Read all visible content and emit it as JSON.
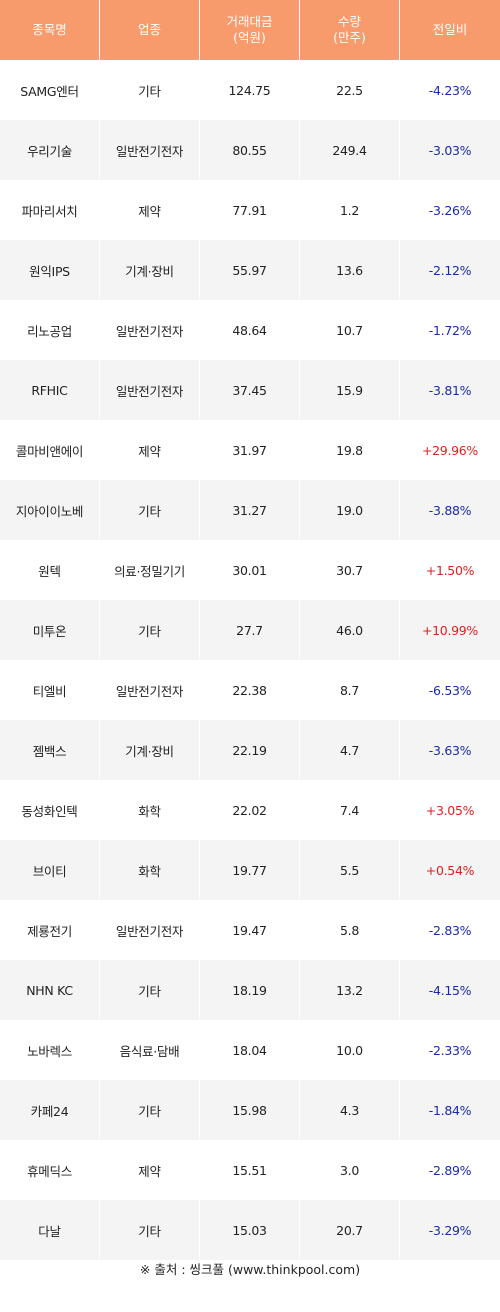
{
  "header": {
    "name": "종목명",
    "sector": "업종",
    "amount_line1": "거래대금",
    "amount_line2": "(억원)",
    "volume_line1": "수량",
    "volume_line2": "(만주)",
    "change": "전일비"
  },
  "colors": {
    "header_bg": "#f79a6c",
    "down": "#1a2ab0",
    "up": "#e02020"
  },
  "rows": [
    {
      "name": "SAMG엔터",
      "sector": "기타",
      "amount": "124.75",
      "volume": "22.5",
      "change": "-4.23%",
      "dir": "down"
    },
    {
      "name": "우리기술",
      "sector": "일반전기전자",
      "amount": "80.55",
      "volume": "249.4",
      "change": "-3.03%",
      "dir": "down"
    },
    {
      "name": "파마리서치",
      "sector": "제약",
      "amount": "77.91",
      "volume": "1.2",
      "change": "-3.26%",
      "dir": "down"
    },
    {
      "name": "원익IPS",
      "sector": "기계·장비",
      "amount": "55.97",
      "volume": "13.6",
      "change": "-2.12%",
      "dir": "down"
    },
    {
      "name": "리노공업",
      "sector": "일반전기전자",
      "amount": "48.64",
      "volume": "10.7",
      "change": "-1.72%",
      "dir": "down"
    },
    {
      "name": "RFHIC",
      "sector": "일반전기전자",
      "amount": "37.45",
      "volume": "15.9",
      "change": "-3.81%",
      "dir": "down"
    },
    {
      "name": "콜마비앤에이",
      "sector": "제약",
      "amount": "31.97",
      "volume": "19.8",
      "change": "+29.96%",
      "dir": "up"
    },
    {
      "name": "지아이이노베",
      "sector": "기타",
      "amount": "31.27",
      "volume": "19.0",
      "change": "-3.88%",
      "dir": "down"
    },
    {
      "name": "원텍",
      "sector": "의료·정밀기기",
      "amount": "30.01",
      "volume": "30.7",
      "change": "+1.50%",
      "dir": "up"
    },
    {
      "name": "미투온",
      "sector": "기타",
      "amount": "27.7",
      "volume": "46.0",
      "change": "+10.99%",
      "dir": "up"
    },
    {
      "name": "티엘비",
      "sector": "일반전기전자",
      "amount": "22.38",
      "volume": "8.7",
      "change": "-6.53%",
      "dir": "down"
    },
    {
      "name": "젬백스",
      "sector": "기계·장비",
      "amount": "22.19",
      "volume": "4.7",
      "change": "-3.63%",
      "dir": "down"
    },
    {
      "name": "동성화인텍",
      "sector": "화학",
      "amount": "22.02",
      "volume": "7.4",
      "change": "+3.05%",
      "dir": "up"
    },
    {
      "name": "브이티",
      "sector": "화학",
      "amount": "19.77",
      "volume": "5.5",
      "change": "+0.54%",
      "dir": "up"
    },
    {
      "name": "제룡전기",
      "sector": "일반전기전자",
      "amount": "19.47",
      "volume": "5.8",
      "change": "-2.83%",
      "dir": "down"
    },
    {
      "name": "NHN KC",
      "sector": "기타",
      "amount": "18.19",
      "volume": "13.2",
      "change": "-4.15%",
      "dir": "down"
    },
    {
      "name": "노바렉스",
      "sector": "음식료·담배",
      "amount": "18.04",
      "volume": "10.0",
      "change": "-2.33%",
      "dir": "down"
    },
    {
      "name": "카페24",
      "sector": "기타",
      "amount": "15.98",
      "volume": "4.3",
      "change": "-1.84%",
      "dir": "down"
    },
    {
      "name": "휴메딕스",
      "sector": "제약",
      "amount": "15.51",
      "volume": "3.0",
      "change": "-2.89%",
      "dir": "down"
    },
    {
      "name": "다날",
      "sector": "기타",
      "amount": "15.03",
      "volume": "20.7",
      "change": "-3.29%",
      "dir": "down"
    }
  ],
  "footer": "※ 출처 : 씽크풀 (www.thinkpool.com)"
}
